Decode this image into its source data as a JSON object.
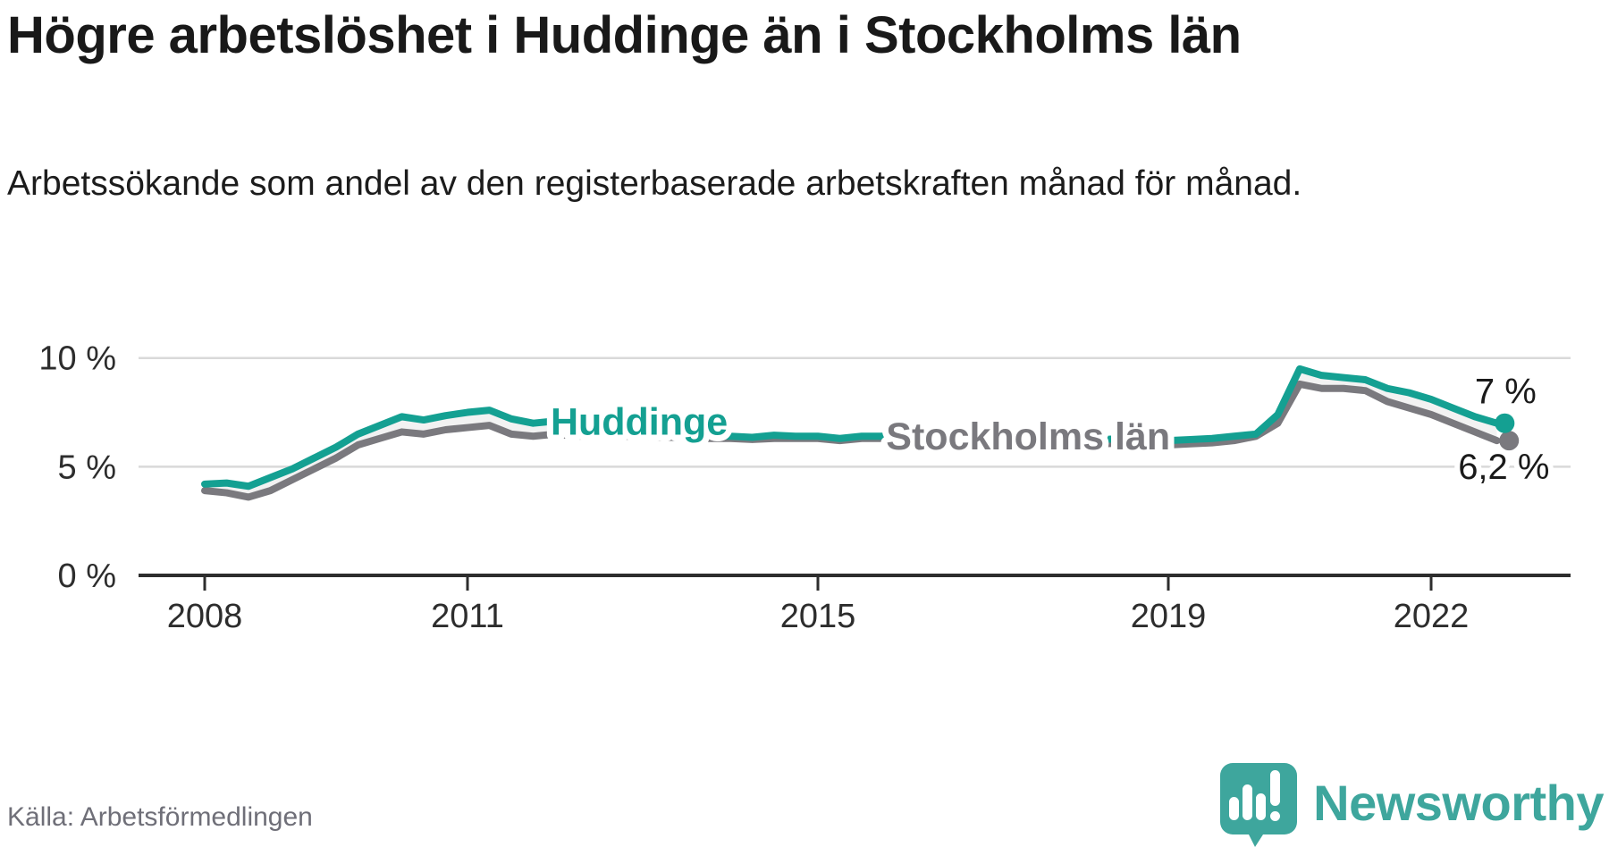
{
  "title": "Högre arbetslöshet i Huddinge än i Stockholms län",
  "subtitle": "Arbetssökande som andel av den registerbaserade arbetskraften månad för månad.",
  "source": "Källa: Arbetsförmedlingen",
  "logo": {
    "text": "Newsworthy"
  },
  "colors": {
    "huddinge": "#14a092",
    "stockholm": "#7a797e",
    "band": "#f2f2f2",
    "grid": "#d9d9d9",
    "axis": "#2d2d2d",
    "annotation": "#1a1a1a",
    "halo": "#ffffff",
    "logo_teal": "#3ea69d"
  },
  "chart_data": {
    "type": "line",
    "title": "Högre arbetslöshet i Huddinge än i Stockholms län",
    "subtitle": "Arbetssökande som andel av den registerbaserade arbetskraften månad för månad.",
    "xlabel": "",
    "ylabel": "",
    "xlim": [
      2007.25,
      2023.3
    ],
    "ylim": [
      0,
      10.8
    ],
    "grid": "horizontal",
    "legend_position": "inline-labels",
    "x": [
      2008.0,
      2008.25,
      2008.5,
      2008.75,
      2009.0,
      2009.25,
      2009.5,
      2009.75,
      2010.0,
      2010.25,
      2010.5,
      2010.75,
      2011.0,
      2011.25,
      2011.5,
      2011.75,
      2012.0,
      2012.25,
      2012.5,
      2012.75,
      2013.0,
      2013.25,
      2013.5,
      2013.75,
      2014.0,
      2014.25,
      2014.5,
      2014.75,
      2015.0,
      2015.25,
      2015.5,
      2015.75,
      2016.0,
      2016.25,
      2016.5,
      2016.75,
      2017.0,
      2017.25,
      2017.5,
      2017.75,
      2018.0,
      2018.25,
      2018.5,
      2018.75,
      2019.0,
      2019.25,
      2019.5,
      2019.75,
      2020.0,
      2020.25,
      2020.5,
      2020.75,
      2021.0,
      2021.25,
      2021.5,
      2021.75,
      2022.0,
      2022.25,
      2022.5,
      2022.75
    ],
    "series": [
      {
        "name": "Huddinge",
        "color_key": "huddinge",
        "values": [
          4.2,
          4.25,
          4.1,
          4.5,
          4.9,
          5.4,
          5.9,
          6.5,
          6.9,
          7.3,
          7.15,
          7.35,
          7.5,
          7.6,
          7.2,
          7.0,
          7.1,
          6.95,
          6.9,
          6.8,
          6.7,
          6.6,
          6.5,
          6.45,
          6.4,
          6.35,
          6.45,
          6.4,
          6.4,
          6.3,
          6.4,
          6.4,
          6.3,
          6.4,
          6.35,
          6.3,
          6.3,
          6.35,
          6.3,
          6.25,
          6.2,
          6.25,
          6.3,
          6.2,
          6.2,
          6.25,
          6.3,
          6.4,
          6.5,
          7.4,
          9.5,
          9.2,
          9.1,
          9.0,
          8.6,
          8.4,
          8.1,
          7.7,
          7.3,
          7.0
        ]
      },
      {
        "name": "Stockholms län",
        "color_key": "stockholm",
        "values": [
          3.9,
          3.8,
          3.6,
          3.9,
          4.4,
          4.9,
          5.4,
          6.0,
          6.3,
          6.6,
          6.5,
          6.7,
          6.8,
          6.9,
          6.5,
          6.4,
          6.5,
          6.4,
          6.45,
          6.4,
          6.4,
          6.35,
          6.35,
          6.3,
          6.3,
          6.25,
          6.3,
          6.3,
          6.3,
          6.2,
          6.3,
          6.3,
          6.2,
          6.3,
          6.25,
          6.2,
          6.2,
          6.2,
          6.15,
          6.1,
          6.1,
          6.05,
          6.1,
          6.0,
          6.0,
          6.05,
          6.1,
          6.2,
          6.4,
          7.0,
          8.8,
          8.6,
          8.6,
          8.5,
          8.0,
          7.7,
          7.4,
          7.0,
          6.6,
          6.2
        ]
      }
    ],
    "yticks": {
      "values": [
        0,
        5,
        10
      ],
      "labels": [
        "0 %",
        "5 %",
        "10 %"
      ]
    },
    "xticks": {
      "values": [
        2008,
        2011,
        2015,
        2019,
        2022
      ],
      "labels": [
        "2008",
        "2011",
        "2015",
        "2019",
        "2022"
      ]
    },
    "series_labels": [
      {
        "text": "Huddinge",
        "x_year": 2012.96,
        "pct": 7.08,
        "color_key": "huddinge"
      },
      {
        "text": "Stockholms län",
        "x_year": 2017.4,
        "pct": 6.42,
        "color_key": "stockholm"
      }
    ],
    "annotations": [
      {
        "text": "7 %",
        "x_year": 2022.85,
        "pct": 8.48
      },
      {
        "text": "6,2 %",
        "x_year": 2022.83,
        "pct": 5.02
      }
    ],
    "end_dots": [
      {
        "series": "Stockholms län",
        "x_year": 2022.89,
        "pct": 6.2,
        "color_key": "stockholm"
      },
      {
        "series": "Huddinge",
        "x_year": 2022.84,
        "pct": 7.0,
        "color_key": "huddinge"
      }
    ]
  }
}
